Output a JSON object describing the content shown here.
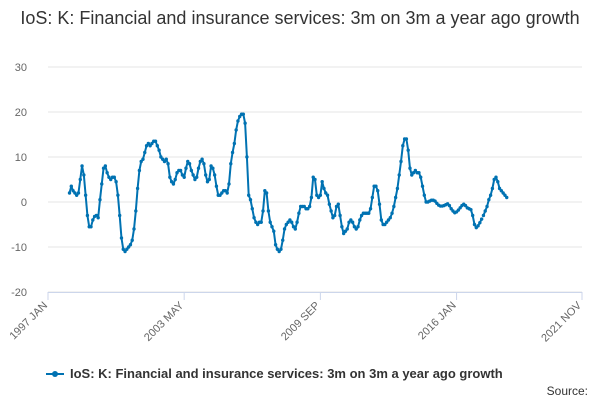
{
  "title": "IoS: K: Financial and insurance services: 3m on 3m a year ago growth",
  "source_label": "Source:",
  "colors": {
    "series": "#0072b2",
    "grid": "#e6e6e6",
    "axis": "#ccd6eb"
  },
  "chart_data": {
    "type": "line",
    "title": "IoS: K: Financial and insurance services: 3m on 3m a year ago growth",
    "xlabel": "",
    "ylabel": "",
    "ylim": [
      -20,
      30
    ],
    "yticks": [
      -20,
      -10,
      0,
      10,
      20,
      30
    ],
    "x_range": [
      "1997 JAN",
      "2021 NOV"
    ],
    "x_ticks": [
      "1997 JAN",
      "2003 MAY",
      "2009 SEP",
      "2016 JAN",
      "2021 NOV"
    ],
    "series": [
      {
        "name": "IoS: K: Financial and insurance services: 3m on 3m a year ago growth",
        "start": "1998 JAN",
        "frequency": "monthly",
        "gaps_at": [
          117,
          210,
          231,
          258,
          261,
          273
        ],
        "values": [
          2.0,
          3.5,
          2.5,
          2.0,
          1.5,
          2.0,
          5.0,
          8.0,
          6.0,
          1.5,
          -3.0,
          -5.5,
          -5.5,
          -4.0,
          -3.2,
          -3.0,
          -3.5,
          0.5,
          4.0,
          7.5,
          8.0,
          6.5,
          5.5,
          5.0,
          5.5,
          5.5,
          4.5,
          1.5,
          -3.0,
          -8.0,
          -10.5,
          -11.0,
          -10.5,
          -10.0,
          -9.5,
          -8.5,
          -6.0,
          -2.0,
          3.0,
          7.0,
          9.0,
          9.5,
          11.0,
          12.5,
          13.0,
          12.5,
          13.0,
          13.5,
          13.5,
          12.5,
          11.5,
          10.0,
          9.5,
          9.0,
          9.5,
          8.5,
          5.5,
          4.5,
          4.0,
          5.0,
          6.5,
          7.0,
          7.0,
          6.0,
          5.5,
          7.5,
          9.0,
          8.5,
          7.0,
          6.0,
          5.0,
          5.5,
          7.5,
          9.0,
          9.5,
          8.5,
          6.0,
          4.5,
          5.0,
          8.0,
          7.5,
          6.0,
          3.5,
          1.5,
          1.5,
          2.0,
          2.5,
          2.5,
          2.0,
          4.0,
          8.5,
          11.0,
          13.0,
          16.0,
          18.0,
          19.0,
          19.5,
          19.5,
          17.5,
          10.0,
          1.5,
          0.5,
          -1.5,
          -3.5,
          -4.5,
          -5.0,
          -4.5,
          -4.5,
          -2.0,
          2.5,
          2.0,
          -2.0,
          -4.5,
          -5.5,
          -6.5,
          -9.5,
          -10.5,
          -11.0,
          -10.5,
          -8.5,
          -6.0,
          -5.0,
          -4.5,
          -4.0,
          -4.5,
          -5.5,
          -6.0,
          -4.5,
          -2.5,
          -1.0,
          -1.0,
          -1.0,
          -1.5,
          -1.5,
          -1.0,
          1.0,
          5.5,
          5.0,
          1.5,
          1.0,
          1.5,
          4.5,
          3.0,
          2.0,
          1.5,
          -0.5,
          -2.0,
          -3.5,
          -3.0,
          -1.0,
          -0.5,
          -3.0,
          -5.5,
          -7.0,
          -6.5,
          -6.0,
          -4.5,
          -4.0,
          -4.5,
          -5.5,
          -6.0,
          -5.5,
          -4.0,
          -3.0,
          -2.5,
          -2.5,
          -2.5,
          -2.5,
          -1.5,
          1.0,
          3.5,
          3.5,
          2.5,
          -0.5,
          -4.0,
          -5.0,
          -5.0,
          -4.5,
          -4.0,
          -3.5,
          -2.5,
          -1.0,
          1.0,
          3.0,
          6.0,
          9.0,
          12.5,
          14.0,
          14.0,
          11.5,
          7.5,
          6.0,
          6.5,
          7.0,
          6.5,
          6.5,
          5.5,
          3.5,
          1.5,
          0.0,
          0.0,
          0.2,
          0.4,
          0.4,
          0.2,
          -0.3,
          -0.7,
          -0.9,
          -0.9,
          -0.8,
          -0.6,
          -0.4,
          -0.8,
          -1.5,
          -2.0,
          -2.4,
          -2.2,
          -1.8,
          -1.3,
          -0.8,
          -0.5,
          -0.8,
          -1.3,
          -1.5,
          -1.7,
          -3.0,
          -5.0,
          -5.7,
          -5.3,
          -4.6,
          -3.8,
          -3.0,
          -2.0,
          -1.0,
          0.5,
          1.5,
          3.0,
          5.0,
          5.5,
          4.5,
          3.0,
          2.5,
          2.0,
          1.5,
          1.0
        ]
      }
    ]
  },
  "legend": {
    "label": "IoS: K: Financial and insurance services: 3m on 3m a year ago growth",
    "position": "bottom"
  }
}
